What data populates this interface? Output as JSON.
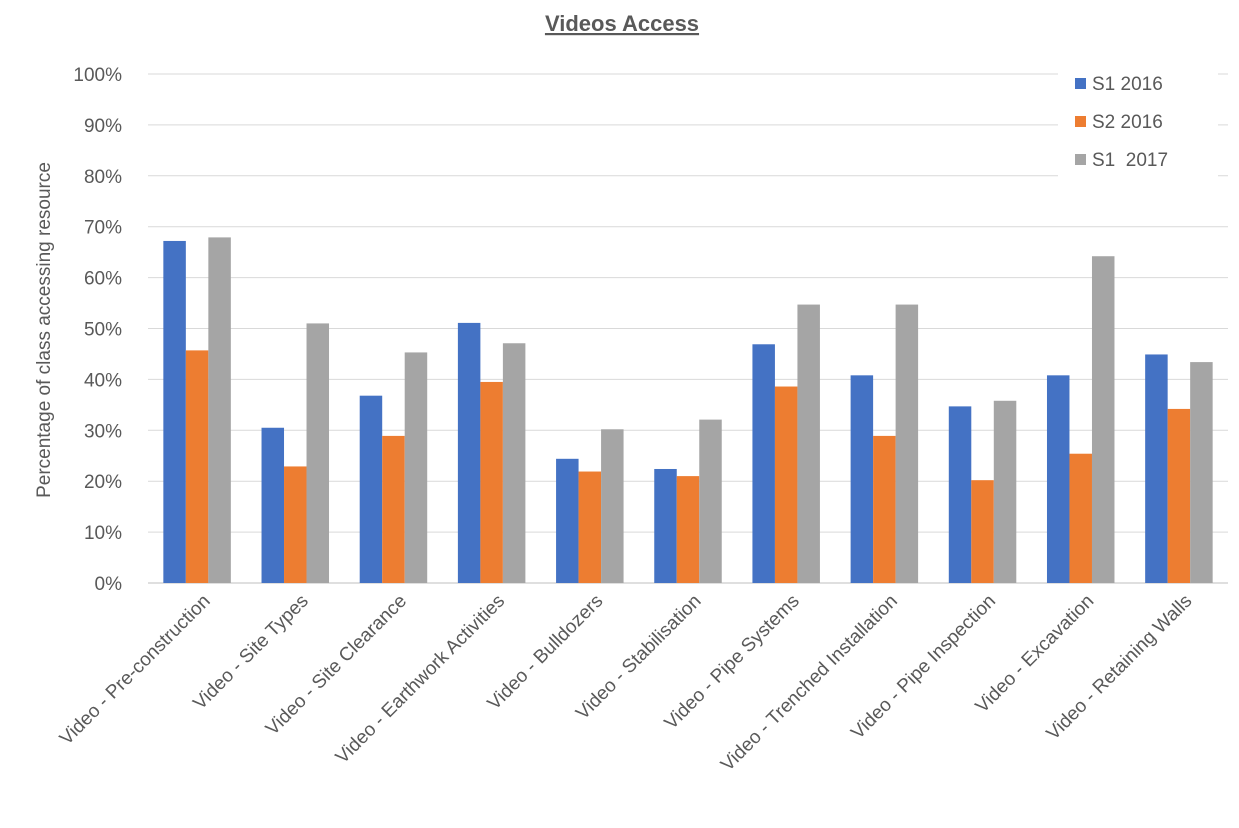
{
  "chart_data": {
    "type": "bar",
    "title": "Videos Access",
    "xlabel": "",
    "ylabel": "Percentage of class accessing resource",
    "ylim": [
      0,
      100
    ],
    "yticks": [
      "0%",
      "10%",
      "20%",
      "30%",
      "40%",
      "50%",
      "60%",
      "70%",
      "80%",
      "90%",
      "100%"
    ],
    "grid": true,
    "legend_position": "top-right",
    "categories": [
      "Video - Pre-construction",
      "Video - Site Types",
      "Video - Site Clearance",
      "Video - Earthwork Activities",
      "Video - Bulldozers",
      "Video - Stabilisation",
      "Video - Pipe Systems",
      "Video - Trenched Installation",
      "Video - Pipe Inspection",
      "Video - Excavation",
      "Video - Retaining Walls"
    ],
    "series": [
      {
        "name": "S1 2016",
        "color": "#4472c4",
        "values": [
          67.2,
          30.5,
          36.8,
          51.1,
          24.4,
          22.4,
          46.9,
          40.8,
          34.7,
          40.8,
          44.9
        ]
      },
      {
        "name": "S2 2016",
        "color": "#ed7d31",
        "values": [
          45.7,
          22.9,
          28.9,
          39.5,
          21.9,
          21.0,
          38.6,
          28.9,
          20.2,
          25.4,
          34.2
        ]
      },
      {
        "name": "S1  2017",
        "color": "#a5a5a5",
        "values": [
          67.9,
          51.0,
          45.3,
          47.1,
          30.2,
          32.1,
          54.7,
          54.7,
          35.8,
          64.2,
          43.4
        ]
      }
    ]
  }
}
